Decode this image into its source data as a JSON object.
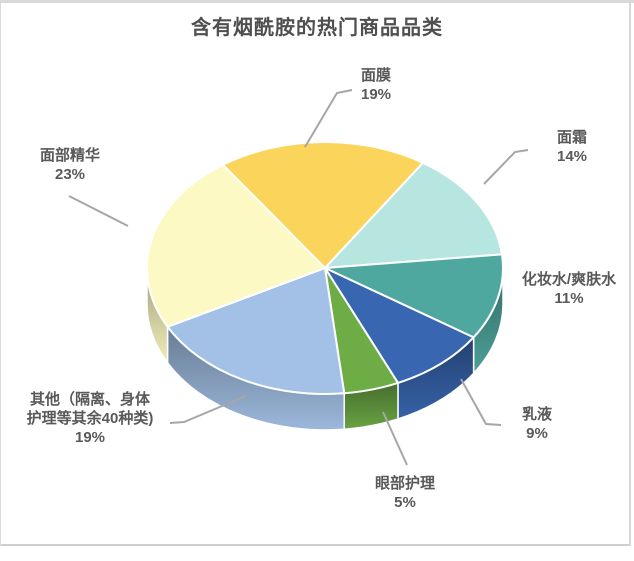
{
  "window": {
    "background": "#ffffff",
    "frame_border_color": "#d9d9d9"
  },
  "chart_data": {
    "type": "pie",
    "is_3d": true,
    "title": "含有烟酰胺的热门商品品类",
    "title_color": "#4f4f4f",
    "legend": "none",
    "start_angle_deg": -35,
    "label_color": "#595959",
    "leader_line_color": "#a6a6a6",
    "slices": [
      {
        "label": "面膜",
        "value": 19,
        "pct_label": "19%",
        "color": "#fbd45c",
        "label_lines": [
          "面膜"
        ]
      },
      {
        "label": "面霜",
        "value": 14,
        "pct_label": "14%",
        "color": "#b7e6e1",
        "label_lines": [
          "面霜"
        ]
      },
      {
        "label": "化妆水/爽肤水",
        "value": 11,
        "pct_label": "11%",
        "color": "#4fa8a0",
        "label_lines": [
          "化妆水/爽肤水"
        ]
      },
      {
        "label": "乳液",
        "value": 9,
        "pct_label": "9%",
        "color": "#3866b0",
        "label_lines": [
          "乳液"
        ]
      },
      {
        "label": "眼部护理",
        "value": 5,
        "pct_label": "5%",
        "color": "#6eac46",
        "label_lines": [
          "眼部护理"
        ]
      },
      {
        "label": "其他（隔离、身体护理等其余40种类)",
        "value": 19,
        "pct_label": "19%",
        "color": "#a3c1e6",
        "label_lines": [
          "其他（隔离、身体",
          "护理等其余40种类)"
        ]
      },
      {
        "label": "面部精华",
        "value": 23,
        "pct_label": "23%",
        "color": "#fdf9c4",
        "label_lines": [
          "面部精华"
        ]
      }
    ]
  }
}
